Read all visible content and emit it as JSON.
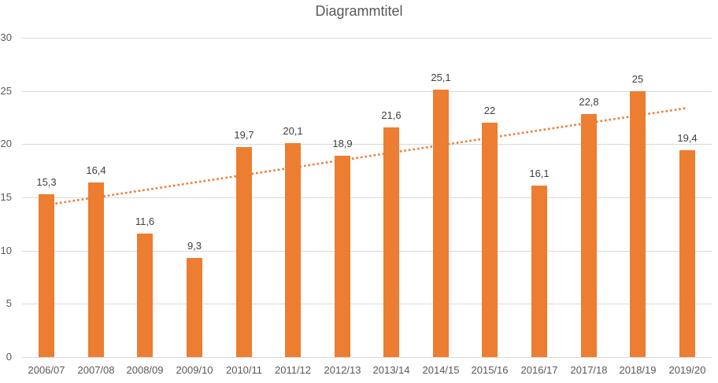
{
  "chart_data": {
    "type": "bar",
    "title": "Diagrammtitel",
    "categories": [
      "2006/07",
      "2007/08",
      "2008/09",
      "2009/10",
      "2010/11",
      "2011/12",
      "2012/13",
      "2013/14",
      "2014/15",
      "2015/16",
      "2016/17",
      "2017/18",
      "2018/19",
      "2019/20"
    ],
    "values": [
      15.3,
      16.4,
      11.6,
      9.3,
      19.7,
      20.1,
      18.9,
      21.6,
      25.1,
      22,
      16.1,
      22.8,
      25,
      19.4
    ],
    "value_labels": [
      "15,3",
      "16,4",
      "11,6",
      "9,3",
      "19,7",
      "20,1",
      "18,9",
      "21,6",
      "25,1",
      "22",
      "16,1",
      "22,8",
      "25",
      "19,4"
    ],
    "xlabel": "",
    "ylabel": "",
    "ylim": [
      0,
      30
    ],
    "yticks": [
      0,
      5,
      10,
      15,
      20,
      25,
      30
    ],
    "ytick_labels": [
      "0",
      "5",
      "10",
      "15",
      "20",
      "25",
      "30"
    ],
    "grid": true,
    "legend": "none",
    "bar_color": "#ED7D31",
    "trendline": {
      "type": "linear",
      "style": "dotted",
      "color": "#ED7D31",
      "start_value": 14.3,
      "end_value": 23.4
    },
    "colors": {
      "gridline": "#D9D9D9",
      "axis_text": "#595959",
      "data_label": "#404040",
      "title_text": "#595959",
      "background": "#FFFFFF"
    }
  }
}
